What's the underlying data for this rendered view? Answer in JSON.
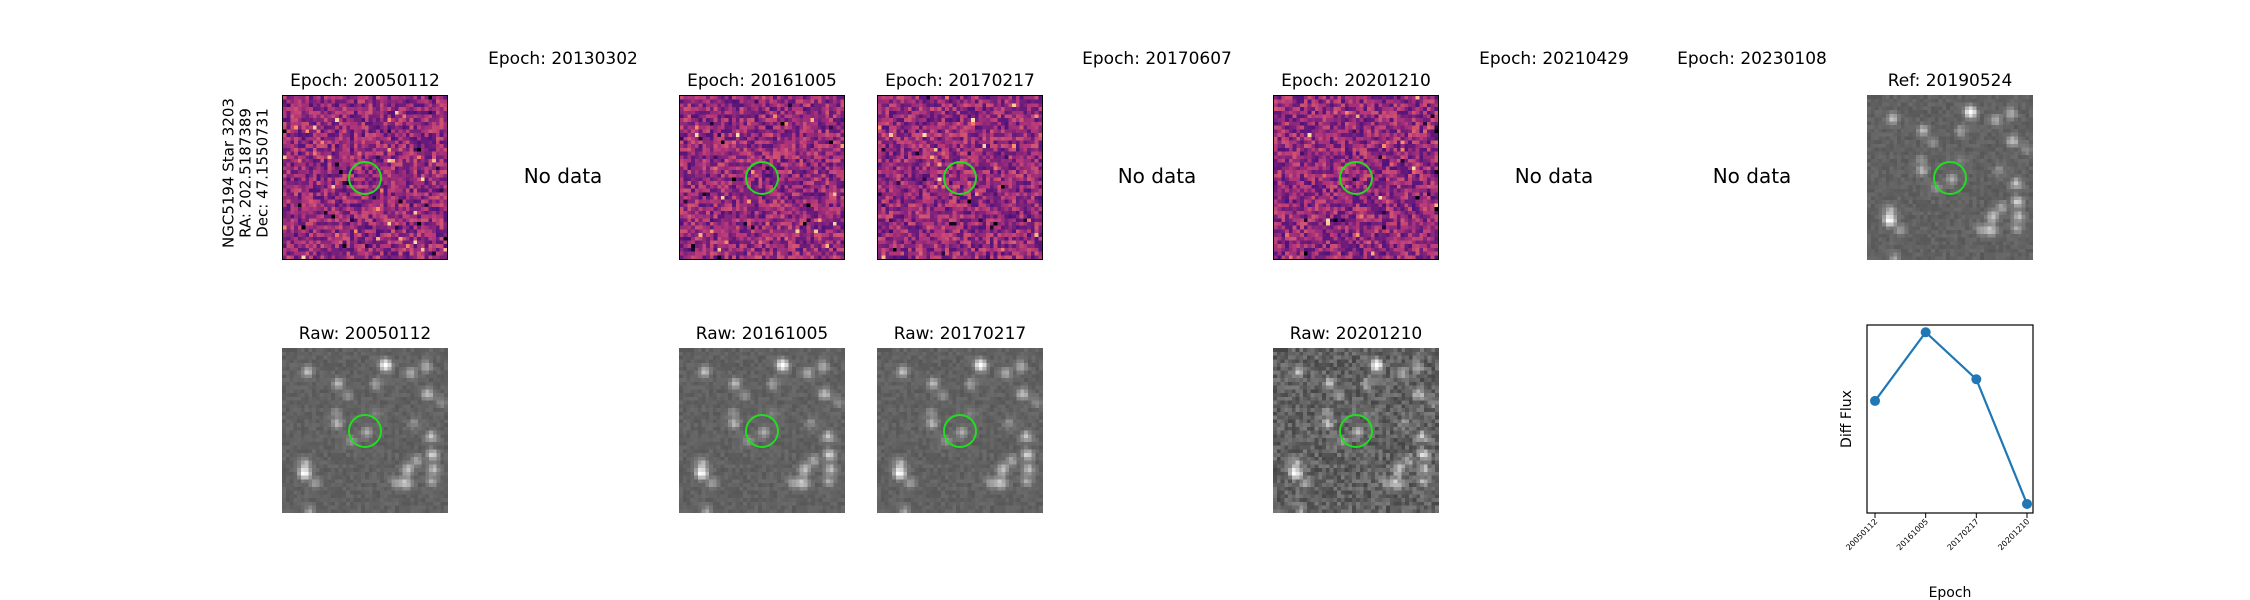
{
  "side_label": {
    "line1": "NGC5194 Star 3203",
    "line2": "RA: 202.5187389",
    "line3": "Dec: 47.1550731"
  },
  "top_titles": [
    "Epoch: 20050112",
    "Epoch: 20130302",
    "Epoch: 20161005",
    "Epoch: 20170217",
    "Epoch: 20170607",
    "Epoch: 20201210",
    "Epoch: 20210429",
    "Epoch: 20230108",
    "Ref: 20190524"
  ],
  "no_data_text": "No data",
  "raw_titles": [
    "Raw: 20050112",
    "Raw: 20161005",
    "Raw: 20170217",
    "Raw: 20201210"
  ],
  "colors": {
    "circle": "#22dd22",
    "line": "#1f77b4"
  },
  "chart_data": {
    "type": "line",
    "categories": [
      "20050112",
      "20161005",
      "20170217",
      "20201210"
    ],
    "values": [
      0.62,
      1.0,
      0.74,
      0.05
    ],
    "xlabel": "Epoch",
    "ylabel": "Diff Flux",
    "ylim": [
      0,
      1.04
    ],
    "grid": false,
    "y_ticks_shown": false
  }
}
